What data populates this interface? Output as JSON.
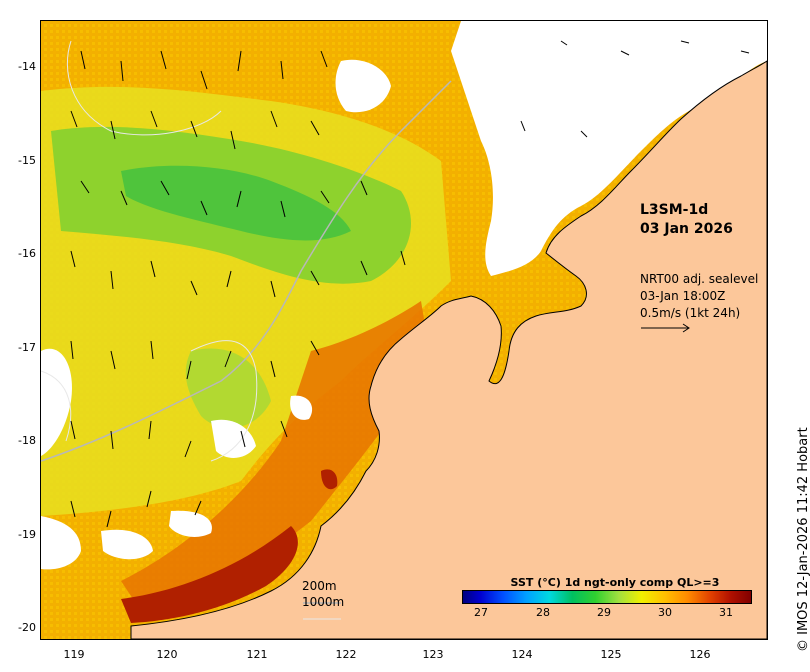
{
  "y_axis": {
    "ticks": [
      "-14",
      "-15",
      "-16",
      "-17",
      "-18",
      "-19",
      "-20"
    ]
  },
  "x_axis": {
    "ticks": [
      "119",
      "120",
      "121",
      "122",
      "123",
      "124",
      "125",
      "126"
    ]
  },
  "product": {
    "line1": "L3SM-1d",
    "line2": "03 Jan 2026"
  },
  "vectors": {
    "line1": "NRT00 adj. sealevel",
    "line2": "03-Jan 18:00Z",
    "line3": "0.5m/s (1kt 24h)"
  },
  "isobaths": {
    "line1": "200m",
    "line2": "1000m"
  },
  "colorbar": {
    "title": "SST (°C) 1d ngt-only comp QL>=3",
    "ticks": [
      "27",
      "28",
      "29",
      "30",
      "31"
    ],
    "min": 26.5,
    "max": 31.5
  },
  "copyright": "© IMOS 12-Jan-2026 11:42 Hobart",
  "colors": {
    "land": "#fcc79a",
    "cloud": "#ffffff",
    "warm": "#f08000",
    "hot": "#a01000",
    "cool": "#30c030"
  }
}
